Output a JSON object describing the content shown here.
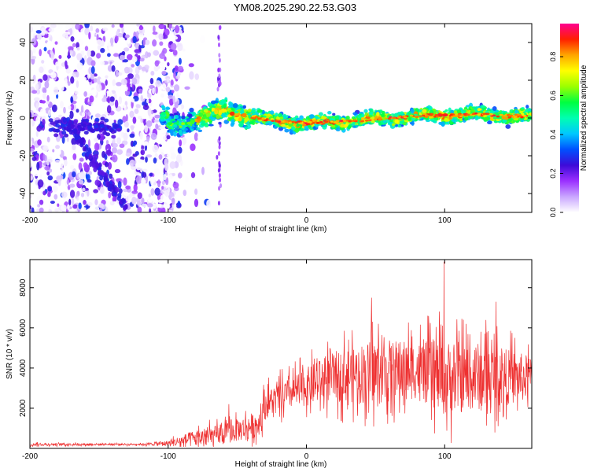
{
  "title": "YM08.2025.290.22.53.G03",
  "chart_data": [
    {
      "type": "heatmap",
      "name": "spectrogram",
      "title": "YM08.2025.290.22.53.G03",
      "xlabel": "Height of straight line (km)",
      "ylabel": "Frequency (Hz)",
      "xlim": [
        -200,
        163
      ],
      "ylim": [
        -50,
        50
      ],
      "x_ticks": [
        {
          "value": -200,
          "label": "-200"
        },
        {
          "value": -100,
          "label": "-100"
        },
        {
          "value": 0,
          "label": "0"
        },
        {
          "value": 100,
          "label": "100"
        }
      ],
      "y_ticks": [
        {
          "value": -40,
          "label": "-40"
        },
        {
          "value": -20,
          "label": "-20"
        },
        {
          "value": 0,
          "label": "0"
        },
        {
          "value": 20,
          "label": "20"
        },
        {
          "value": 40,
          "label": "40"
        }
      ],
      "colorbar": {
        "label": "Normalized spectral amplitude",
        "range": [
          0,
          0.97
        ],
        "ticks": [
          {
            "value": 0,
            "label": "0.0"
          },
          {
            "value": 0.2,
            "label": "0.2"
          },
          {
            "value": 0.4,
            "label": "0.4"
          },
          {
            "value": 0.6,
            "label": "0.6"
          },
          {
            "value": 0.8,
            "label": "0.8"
          }
        ],
        "colors": [
          "#ffffff",
          "#c9a6ff",
          "#9b30ff",
          "#3d0bd8",
          "#0050ff",
          "#00c8ff",
          "#00ffb0",
          "#00ff40",
          "#9cff00",
          "#ffff00",
          "#ffa500",
          "#ff2000",
          "#ff0090"
        ]
      },
      "ridge": {
        "description_free": true,
        "start_km": -100,
        "center_freq_hz": [
          [
            -100,
            -5
          ],
          [
            -60,
            4
          ],
          [
            -30,
            -1
          ],
          [
            0,
            -3
          ],
          [
            40,
            -1
          ],
          [
            80,
            1
          ],
          [
            120,
            2
          ],
          [
            160,
            1
          ]
        ],
        "peak_amplitude": 0.95
      }
    },
    {
      "type": "line",
      "name": "snr",
      "xlabel": "Height of straight line (km)",
      "ylabel": "SNR (10 * v/v)",
      "xlim": [
        -200,
        163
      ],
      "ylim": [
        0,
        9400
      ],
      "x_ticks": [
        {
          "value": -200,
          "label": "-200"
        },
        {
          "value": -100,
          "label": "-100"
        },
        {
          "value": 0,
          "label": "0"
        },
        {
          "value": 100,
          "label": "100"
        }
      ],
      "y_ticks": [
        {
          "value": 2000,
          "label": "2000"
        },
        {
          "value": 4000,
          "label": "4000"
        },
        {
          "value": 6000,
          "label": "6000"
        },
        {
          "value": 8000,
          "label": "8000"
        }
      ],
      "color": "#ee3030",
      "envelope": [
        {
          "x": -200,
          "base": 200,
          "amp": 120
        },
        {
          "x": -120,
          "base": 200,
          "amp": 80
        },
        {
          "x": -100,
          "base": 250,
          "amp": 250
        },
        {
          "x": -80,
          "base": 500,
          "amp": 800
        },
        {
          "x": -60,
          "base": 700,
          "amp": 900
        },
        {
          "x": -35,
          "base": 1200,
          "amp": 1200
        },
        {
          "x": -30,
          "base": 2200,
          "amp": 1300
        },
        {
          "x": -10,
          "base": 2800,
          "amp": 1500
        },
        {
          "x": 20,
          "base": 3600,
          "amp": 2200
        },
        {
          "x": 50,
          "base": 3800,
          "amp": 3000
        },
        {
          "x": 80,
          "base": 3900,
          "amp": 2600
        },
        {
          "x": 100,
          "base": 3500,
          "amp": 3400
        },
        {
          "x": 130,
          "base": 3600,
          "amp": 3000
        },
        {
          "x": 163,
          "base": 3500,
          "amp": 2000
        }
      ],
      "peaks": [
        {
          "x": 99.5,
          "y": 9300
        },
        {
          "x": 47,
          "y": 7500
        },
        {
          "x": 137,
          "y": 7300
        },
        {
          "x": -56,
          "y": 2200
        }
      ]
    }
  ]
}
